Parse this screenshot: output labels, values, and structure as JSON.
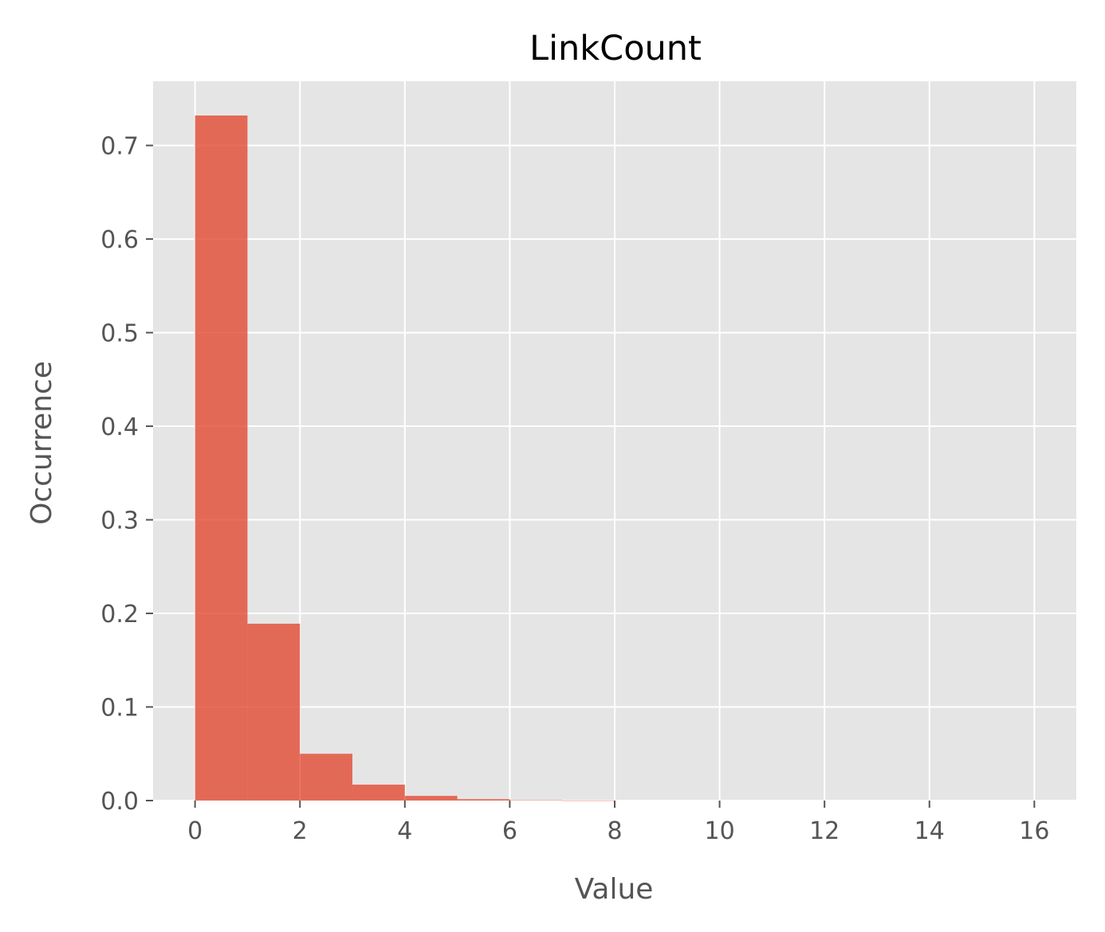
{
  "chart_data": {
    "type": "bar",
    "title": "LinkCount",
    "xlabel": "Value",
    "ylabel": "Occurrence",
    "bins": [
      {
        "x0": 0,
        "x1": 1,
        "value": 0.732
      },
      {
        "x0": 1,
        "x1": 2,
        "value": 0.189
      },
      {
        "x0": 2,
        "x1": 3,
        "value": 0.05
      },
      {
        "x0": 3,
        "x1": 4,
        "value": 0.017
      },
      {
        "x0": 4,
        "x1": 5,
        "value": 0.005
      },
      {
        "x0": 5,
        "x1": 6,
        "value": 0.0015
      },
      {
        "x0": 6,
        "x1": 7,
        "value": 0.0004
      },
      {
        "x0": 7,
        "x1": 8,
        "value": 0.0001
      },
      {
        "x0": 8,
        "x1": 9,
        "value": 0.0
      },
      {
        "x0": 9,
        "x1": 10,
        "value": 0.0
      },
      {
        "x0": 10,
        "x1": 11,
        "value": 0.0
      },
      {
        "x0": 11,
        "x1": 12,
        "value": 0.0
      },
      {
        "x0": 12,
        "x1": 13,
        "value": 0.0
      },
      {
        "x0": 13,
        "x1": 14,
        "value": 0.0
      },
      {
        "x0": 14,
        "x1": 15,
        "value": 0.0
      },
      {
        "x0": 15,
        "x1": 16,
        "value": 0.0
      }
    ],
    "xticks": [
      0,
      2,
      4,
      6,
      8,
      10,
      12,
      14,
      16
    ],
    "xtick_labels": [
      "0",
      "2",
      "4",
      "6",
      "8",
      "10",
      "12",
      "14",
      "16"
    ],
    "yticks": [
      0.0,
      0.1,
      0.2,
      0.3,
      0.4,
      0.5,
      0.6,
      0.7
    ],
    "ytick_labels": [
      "0.0",
      "0.1",
      "0.2",
      "0.3",
      "0.4",
      "0.5",
      "0.6",
      "0.7"
    ],
    "xlim": [
      -0.8,
      16.8
    ],
    "ylim": [
      0,
      0.7686
    ],
    "grid": true,
    "colors": {
      "bar": "#E24A33",
      "bar_opacity": 0.8,
      "plot_background": "#E5E5E5",
      "grid": "#FFFFFF",
      "tick_text": "#555555",
      "title_text": "#000000"
    }
  }
}
